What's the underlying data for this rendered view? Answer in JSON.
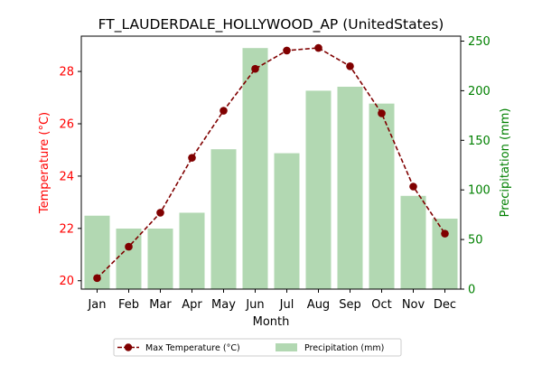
{
  "chart_data": {
    "type": "bar+line",
    "title": "FT_LAUDERDALE_HOLLYWOOD_AP (UnitedStates)",
    "xlabel": "Month",
    "ylabel_left": "Temperature (°C)",
    "ylabel_right": "Precipitation (mm)",
    "categories": [
      "Jan",
      "Feb",
      "Mar",
      "Apr",
      "May",
      "Jun",
      "Jul",
      "Aug",
      "Sep",
      "Oct",
      "Nov",
      "Dec"
    ],
    "ylim_left": [
      19.68,
      29.35
    ],
    "ylim_right": [
      0,
      255
    ],
    "yticks_left": [
      20,
      22,
      24,
      26,
      28
    ],
    "yticks_right": [
      0,
      50,
      100,
      150,
      200,
      250
    ],
    "grid": false,
    "legend_position": "bottom-center",
    "series": [
      {
        "name": "Max Temperature (°C)",
        "type": "line",
        "axis": "left",
        "color": "#800000",
        "values": [
          20.1,
          21.3,
          22.6,
          24.7,
          26.5,
          28.1,
          28.8,
          28.9,
          28.2,
          26.4,
          23.6,
          21.8
        ]
      },
      {
        "name": "Precipitation (mm)",
        "type": "bar",
        "axis": "right",
        "color": "#b2d8b2",
        "values": [
          74,
          61,
          61,
          77,
          141,
          243,
          137,
          200,
          204,
          187,
          94,
          71
        ]
      }
    ],
    "left_axis_color": "#ff0000",
    "right_axis_color": "#008000"
  }
}
